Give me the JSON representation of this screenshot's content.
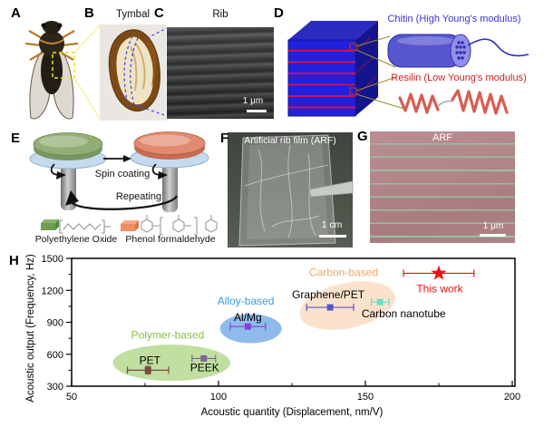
{
  "panels": {
    "a": {
      "letter": "A"
    },
    "b": {
      "letter": "B",
      "title": "Tymbal"
    },
    "c": {
      "letter": "C",
      "title": "Rib",
      "scale": "1 μm"
    },
    "d": {
      "letter": "D",
      "chitin": "Chitin (High Young's modulus)",
      "resilin": "Resilin (Low Young's modulus)",
      "chitin_color": "#3535cc",
      "resilin_color": "#cc2222",
      "block_color": "#2020dd",
      "stripe_color": "#d01050"
    },
    "e": {
      "letter": "E",
      "arrow_label": "Spin coating",
      "repeat_label": "Repeating",
      "material1": "Polyethylene Oxide",
      "material2": "Phenol formaldehyde",
      "disc1_color": "#92ae74",
      "disc2_color": "#e28a70"
    },
    "f": {
      "letter": "F",
      "title": "Artificial rib film (ARF)",
      "scale": "1 cm"
    },
    "g": {
      "letter": "G",
      "title": "ARF",
      "scale": "1 μm"
    },
    "h": {
      "letter": "H"
    }
  },
  "chart_data": {
    "type": "scatter",
    "title": "",
    "xlabel": "Acoustic quantity (Displacement, nm/V)",
    "ylabel": "Acoustic output (Frequency, Hz)",
    "xlim": [
      50,
      200
    ],
    "ylim": [
      300,
      1500
    ],
    "xticks": [
      50,
      100,
      150,
      200
    ],
    "xticks_minor": [
      75,
      125,
      175
    ],
    "yticks": [
      300,
      600,
      900,
      1200,
      1500
    ],
    "yticks_minor": [
      450,
      750,
      1050,
      1350
    ],
    "grid": false,
    "legend": "none",
    "series": [
      {
        "name": "PET",
        "x": 76,
        "y": 450,
        "xerr": 7,
        "yerr": 35,
        "marker": "square",
        "color": "#7a4a45",
        "label_color": "#000000",
        "group": "Polymer-based",
        "label_dx": 2,
        "label_dy": -11
      },
      {
        "name": "PEEK",
        "x": 95,
        "y": 560,
        "xerr": 4,
        "yerr": 0,
        "marker": "square",
        "color": "#7d6397",
        "label_color": "#000000",
        "group": "Polymer-based",
        "label_dx": 1,
        "label_dy": 10
      },
      {
        "name": "Al/Mg",
        "x": 110,
        "y": 860,
        "xerr": 6,
        "yerr": 0,
        "marker": "square",
        "color": "#8b3fd6",
        "label_color": "#000000",
        "group": "Alloy-based",
        "label_dx": 0,
        "label_dy": -10
      },
      {
        "name": "Graphene/PET",
        "x": 138,
        "y": 1040,
        "xerr": 8,
        "yerr": 0,
        "marker": "square",
        "color": "#5a52c8",
        "label_color": "#000000",
        "group": "Carbon-based",
        "label_dx": -2,
        "label_dy": -14
      },
      {
        "name": "Carbon nanotube",
        "x": 155,
        "y": 1090,
        "xerr": 3,
        "yerr": 0,
        "marker": "square",
        "color": "#63e0c8",
        "label_color": "#000000",
        "group": "Carbon-based",
        "label_dx": 26,
        "label_dy": 13
      },
      {
        "name": "This work",
        "x": 175,
        "y": 1360,
        "xerr": 12,
        "yerr": 0,
        "marker": "star",
        "color": "#ee1111",
        "label_color": "#ee1111",
        "group": null,
        "label_dx": 1,
        "label_dy": 17
      }
    ],
    "regions": [
      {
        "label": "Polymer-based",
        "cx": 84,
        "cy": 520,
        "rx": 20,
        "ry": 170,
        "rot": 0,
        "fill": "#b9dc96",
        "label_color": "#84c341",
        "label_x": 82.7,
        "label_y": 780
      },
      {
        "label": "Alloy-based",
        "cx": 111,
        "cy": 840,
        "rx": 10.5,
        "ry": 136,
        "rot": 0,
        "fill": "#82b4ea",
        "label_color": "#3d9be9",
        "label_x": 109.3,
        "label_y": 1100
      },
      {
        "label": "Carbon-based",
        "cx": 143.9,
        "cy": 1057,
        "rx": 16.5,
        "ry": 213,
        "rot": -12,
        "fill": "#f9dfc8",
        "label_color": "#f0a865",
        "label_x": 142.6,
        "label_y": 1368
      }
    ]
  }
}
